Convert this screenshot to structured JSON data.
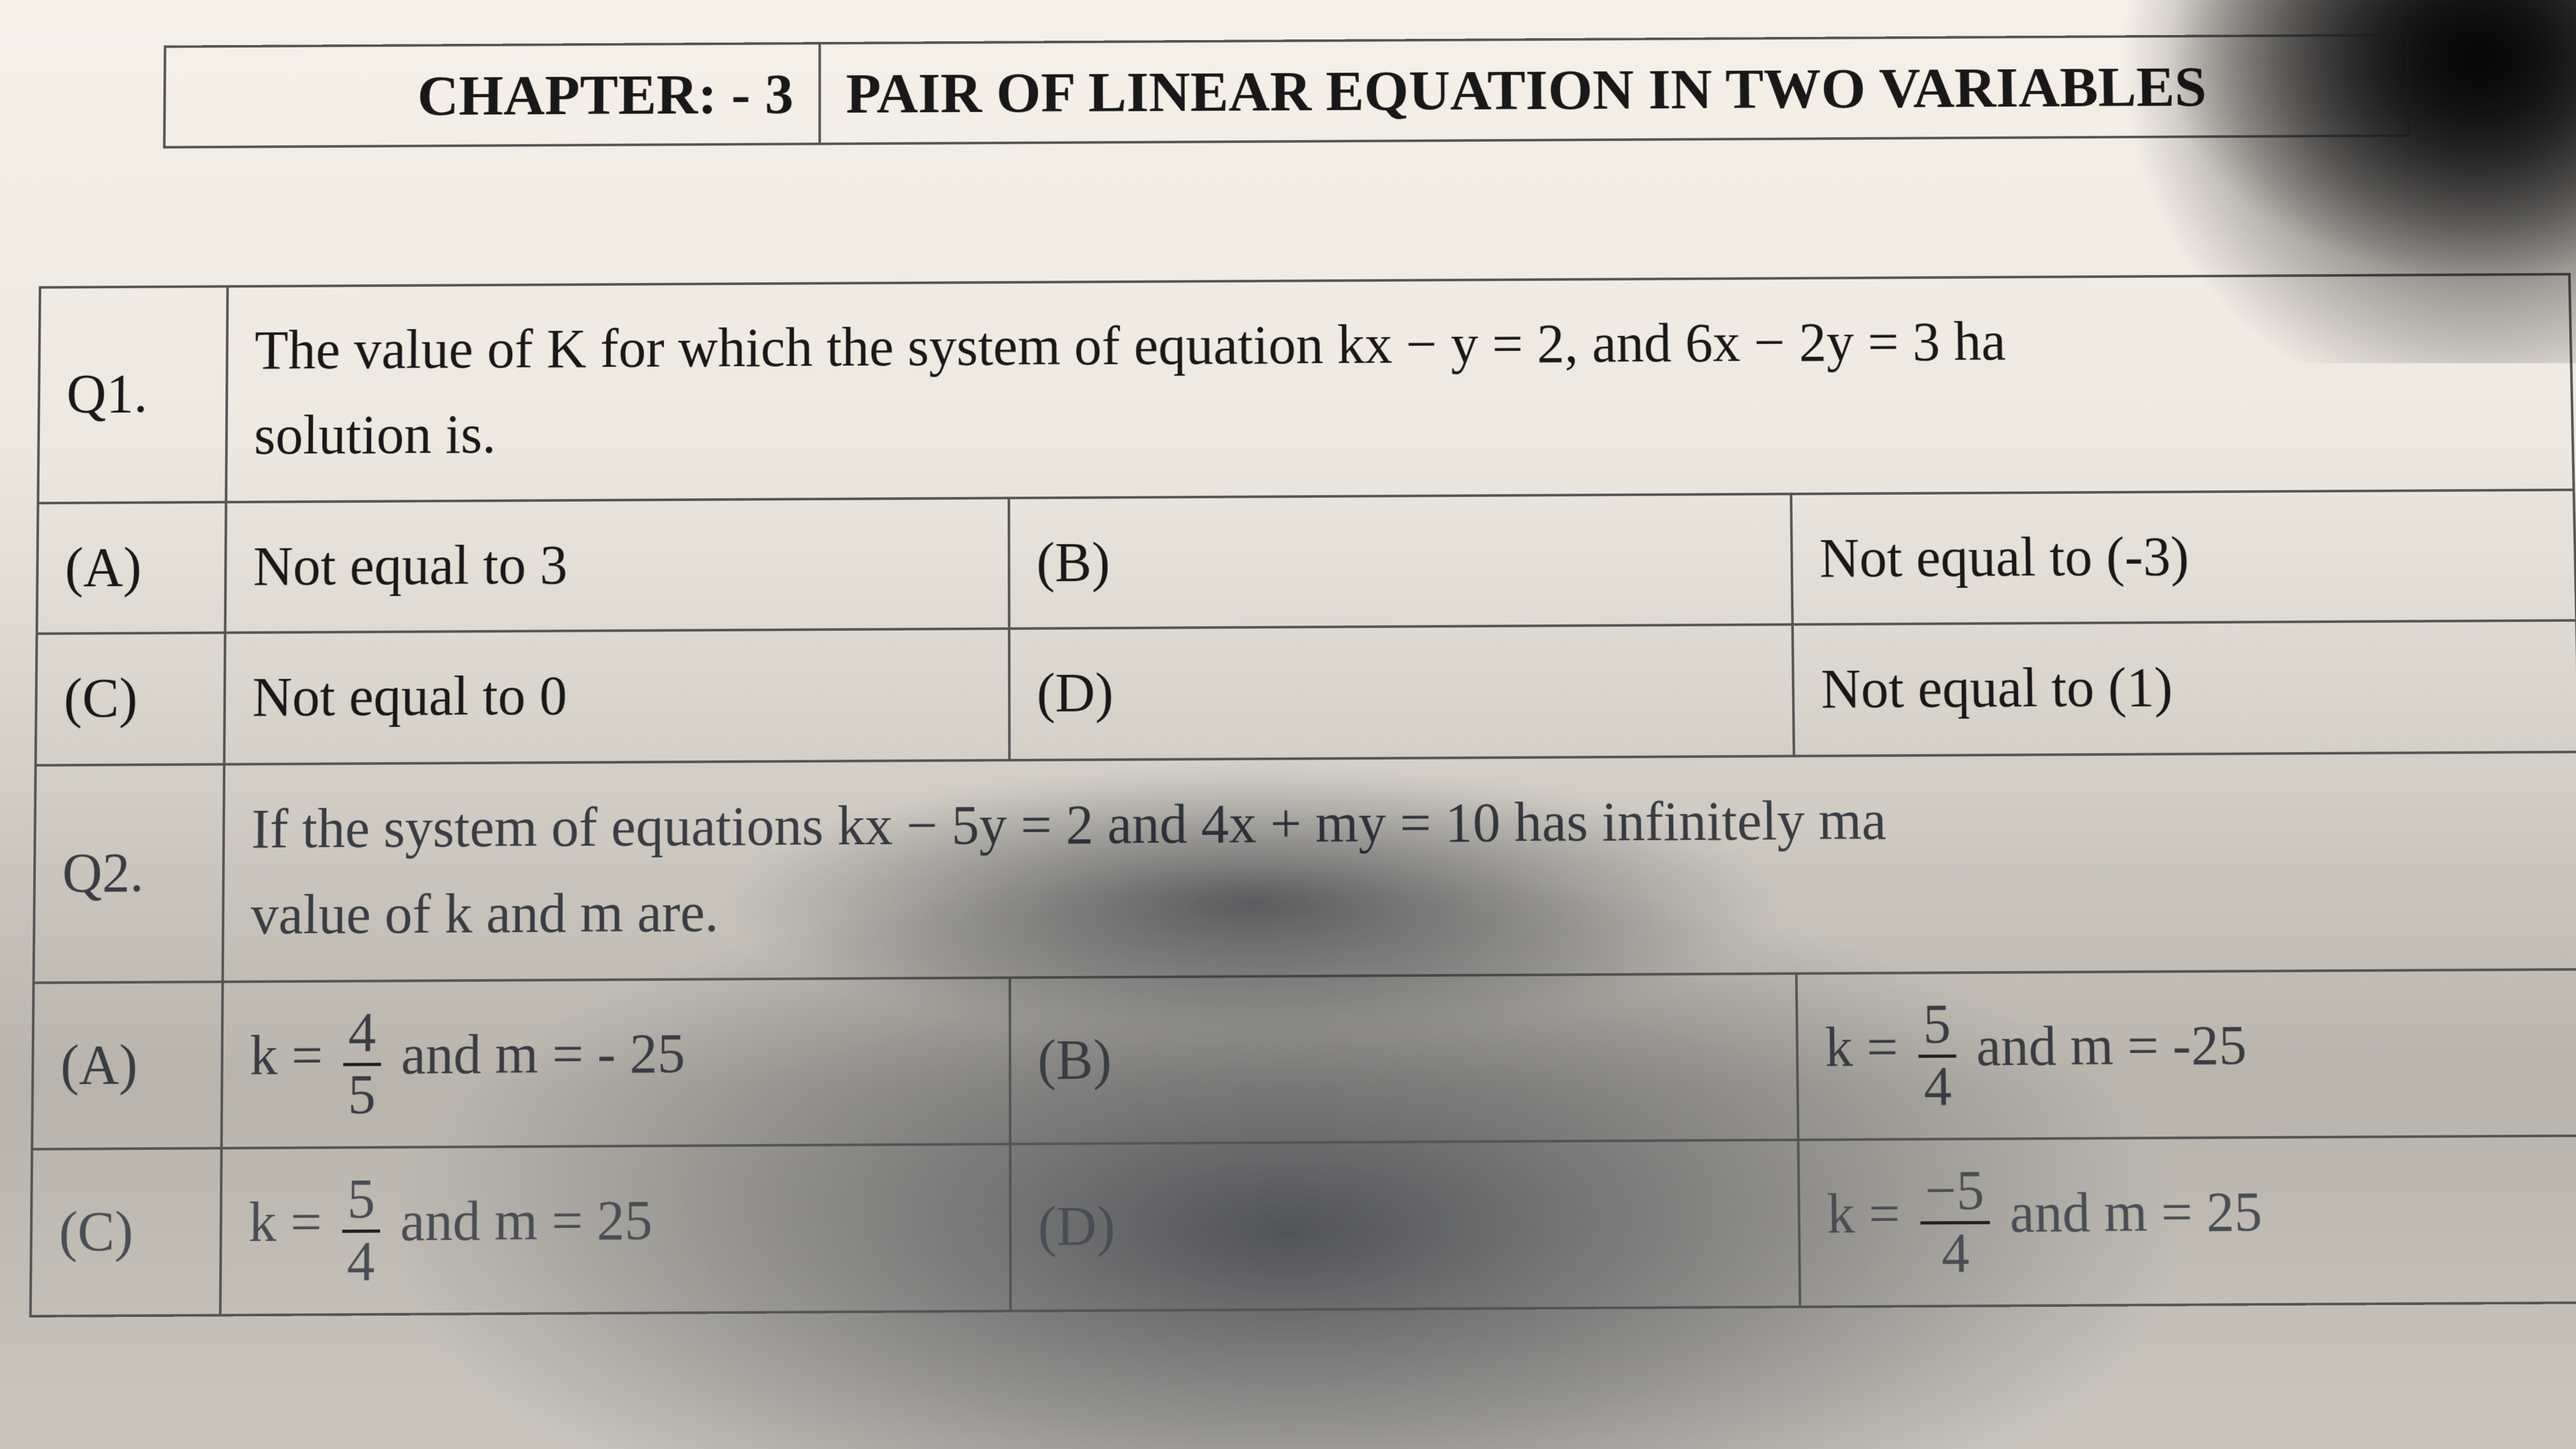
{
  "colors": {
    "paper_top": "#f3eee6",
    "paper_mid": "#ece7de",
    "paper_shadow": "#b7b3ab",
    "rule": "#555555",
    "text": "#1a1a1a",
    "dim_text": "#3a3e44"
  },
  "typography": {
    "family": "Times New Roman",
    "header_pt": 92,
    "body_pt": 88,
    "weight_header": 700,
    "weight_body": 400
  },
  "header": {
    "left": "CHAPTER: - 3",
    "right": "PAIR OF LINEAR EQUATION IN TWO VARIABLES"
  },
  "q1": {
    "num": "Q1.",
    "text_line1": "The value of K for which the system of equation kx − y = 2, and 6x − 2y = 3 ha",
    "text_line2": "solution is.",
    "A": {
      "label": "(A)",
      "text": "Not equal to   3"
    },
    "B": {
      "label": "(B)",
      "text": "Not equal to  (-3)"
    },
    "C": {
      "label": "(C)",
      "text": "Not equal to   0"
    },
    "D": {
      "label": "(D)",
      "text": "Not equal to  (1)"
    }
  },
  "q2": {
    "num": "Q2.",
    "text_line1": "If the system of equations kx − 5y = 2 and  4x + my = 10 has infinitely ma",
    "text_line2": "value of k and m are.",
    "A": {
      "label": "(A)",
      "k_num": "4",
      "k_den": "5",
      "mid": " and m = - 25"
    },
    "B": {
      "label": "(B)",
      "k_num": "5",
      "k_den": "4",
      "mid": " and m = -25"
    },
    "C": {
      "label": "(C)",
      "k_num": "5",
      "k_den": "4",
      "mid": " and m = 25"
    },
    "D": {
      "label": "(D)",
      "k_num": "−5",
      "k_den": "4",
      "mid": " and m = 25"
    }
  }
}
